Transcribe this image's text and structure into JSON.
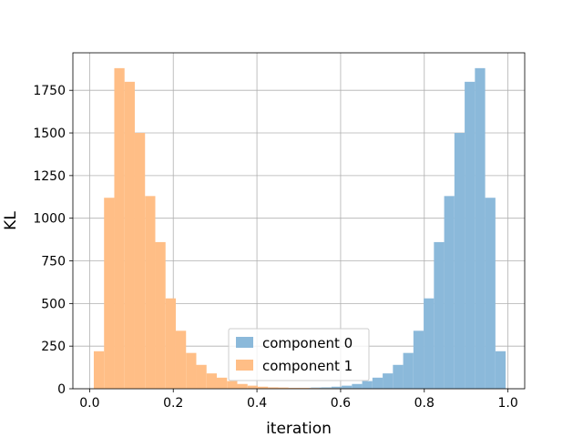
{
  "chart_data": {
    "type": "bar",
    "title": "",
    "xlabel": "iteration",
    "ylabel": "KL",
    "xlim": [
      -0.04,
      1.04
    ],
    "ylim": [
      0,
      1970
    ],
    "xticks": [
      0.0,
      0.2,
      0.4,
      0.6,
      0.8,
      1.0
    ],
    "xtick_labels": [
      "0.0",
      "0.2",
      "0.4",
      "0.6",
      "0.8",
      "1.0"
    ],
    "yticks": [
      0,
      250,
      500,
      750,
      1000,
      1250,
      1500,
      1750
    ],
    "ytick_labels": [
      "0",
      "250",
      "500",
      "750",
      "1000",
      "1250",
      "1500",
      "1750"
    ],
    "grid": true,
    "legend_position": "lower-center",
    "bin_width": 0.0245,
    "series": [
      {
        "name": "component 0",
        "color": "#8bb9da",
        "bin_starts": [
          0.3575,
          0.382,
          0.4065,
          0.431,
          0.4555,
          0.48,
          0.5045,
          0.529,
          0.5535,
          0.578,
          0.6025,
          0.627,
          0.6515,
          0.676,
          0.7005,
          0.725,
          0.7495,
          0.774,
          0.7985,
          0.823,
          0.8475,
          0.872,
          0.8965,
          0.921,
          0.9455,
          0.97
        ],
        "values": [
          2,
          2,
          3,
          3,
          4,
          5,
          5,
          7,
          8,
          12,
          18,
          28,
          45,
          65,
          90,
          140,
          210,
          340,
          530,
          860,
          1130,
          1500,
          1800,
          1880,
          1120,
          220
        ]
      },
      {
        "name": "component 1",
        "color": "#ffbe86",
        "bin_starts": [
          0.01,
          0.0345,
          0.059,
          0.0835,
          0.108,
          0.1325,
          0.157,
          0.1815,
          0.206,
          0.2305,
          0.255,
          0.2795,
          0.304,
          0.3285,
          0.353,
          0.3775,
          0.402,
          0.4265,
          0.451,
          0.4755,
          0.5,
          0.5245,
          0.549,
          0.5735,
          0.598,
          0.6225
        ],
        "values": [
          220,
          1120,
          1880,
          1800,
          1500,
          1130,
          860,
          530,
          340,
          210,
          140,
          90,
          65,
          45,
          28,
          18,
          12,
          8,
          7,
          5,
          5,
          4,
          3,
          3,
          2,
          2
        ]
      }
    ]
  }
}
